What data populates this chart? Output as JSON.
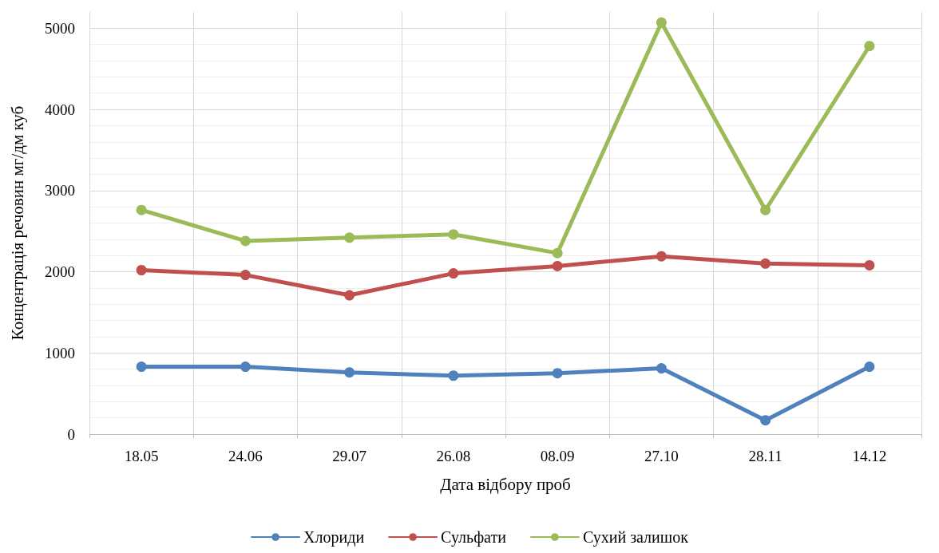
{
  "chart_data": {
    "type": "line",
    "xlabel": "Дата відбору проб",
    "ylabel": "Концентрація речовин мг/дм куб",
    "categories": [
      "18.05",
      "24.06",
      "29.07",
      "26.08",
      "08.09",
      "27.10",
      "28.11",
      "14.12"
    ],
    "series": [
      {
        "name": "Хлориди",
        "color": "#4f81bd",
        "values": [
          830,
          830,
          760,
          720,
          750,
          810,
          170,
          830
        ]
      },
      {
        "name": "Сульфати",
        "color": "#c0504d",
        "values": [
          2020,
          1960,
          1710,
          1980,
          2070,
          2190,
          2100,
          2080
        ]
      },
      {
        "name": "Сухий залишок",
        "color": "#9bbb59",
        "values": [
          2760,
          2380,
          2420,
          2460,
          2230,
          5070,
          2760,
          4780
        ]
      }
    ],
    "ylim": [
      0,
      5200
    ],
    "yticks": [
      0,
      1000,
      2000,
      3000,
      4000,
      5000
    ],
    "grid": true,
    "legend": "bottom",
    "marker": "circle",
    "line_style": "solid"
  }
}
